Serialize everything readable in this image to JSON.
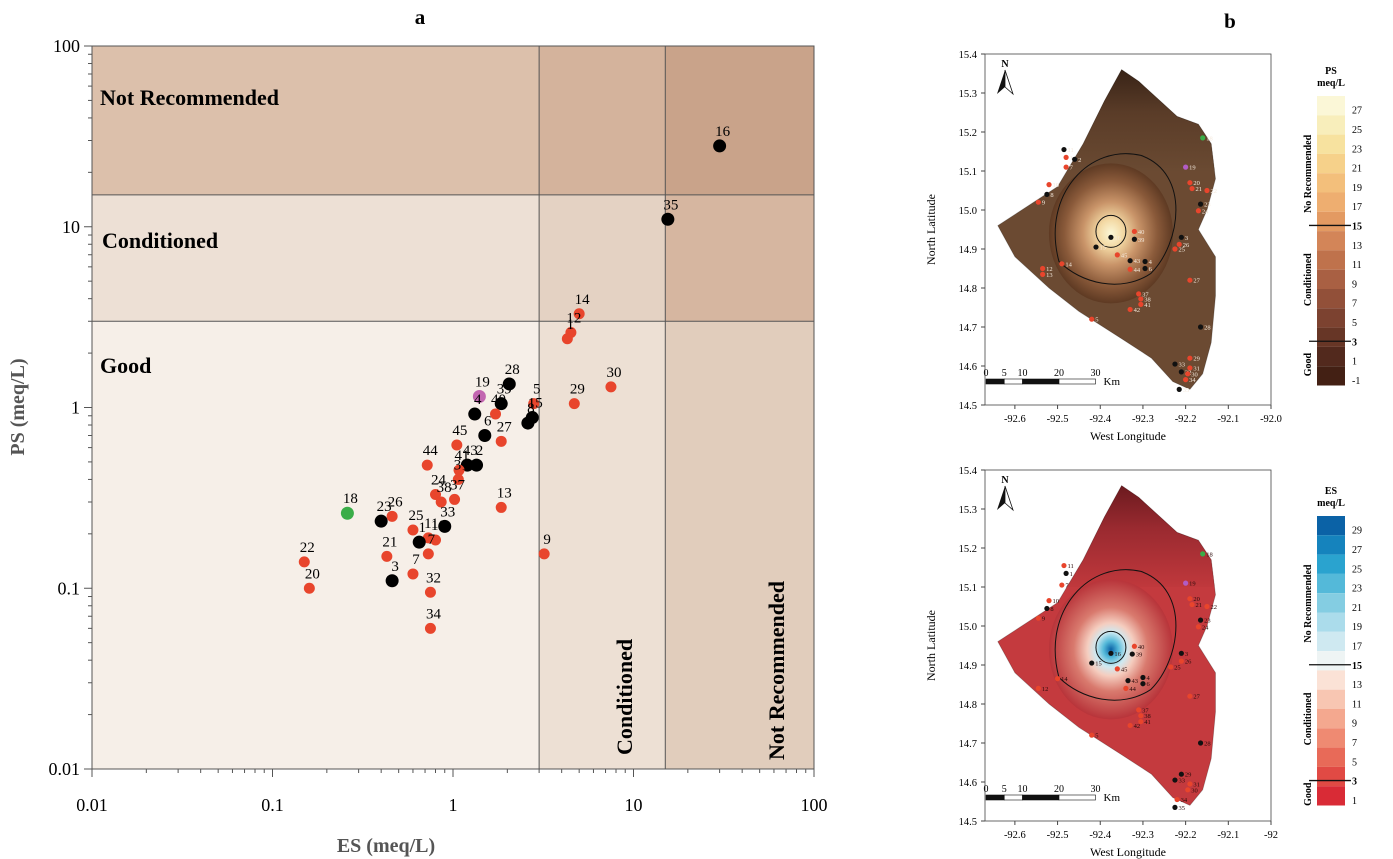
{
  "panel_a": {
    "label": "a",
    "xlabel": "ES (meq/L)",
    "ylabel": "PS (meq/L)",
    "x_ticks": [
      "0.01",
      "0.1",
      "1",
      "10",
      "100"
    ],
    "y_ticks": [
      "0.01",
      "0.1",
      "1",
      "10",
      "100"
    ],
    "zones": {
      "not_recommended": "Not Recommended",
      "conditioned": "Conditioned",
      "good": "Good",
      "x_conditioned": "Conditioned",
      "x_not_recommended": "Not Recommended"
    }
  },
  "panel_b": {
    "label": "b",
    "north": "N",
    "y_axis_label": "North Latitude",
    "x_axis_label": "West Longitude",
    "lat_ticks": [
      "15.4",
      "15.3",
      "15.2",
      "15.1",
      "15.0",
      "14.9",
      "14.8",
      "14.7",
      "14.6",
      "14.5"
    ],
    "lon_ticks_top": [
      "-92.6",
      "-92.5",
      "-92.4",
      "-92.3",
      "-92.2",
      "-92.1",
      "-92.0"
    ],
    "lon_ticks_bottom": [
      "-92.6",
      "-92.5",
      "-92.4",
      "-92.3",
      "-92.2",
      "-92.1",
      "-92"
    ],
    "scale_ticks": [
      "0",
      "5",
      "10",
      "20",
      "30"
    ],
    "scale_unit": "Km",
    "legend_ps": {
      "title": "PS",
      "unit": "meq/L",
      "values": [
        "27",
        "25",
        "23",
        "21",
        "19",
        "17",
        "15",
        "13",
        "11",
        "9",
        "7",
        "5",
        "3",
        "1",
        "-1"
      ],
      "classes": [
        "No Recommended",
        "Conditioned",
        "Good"
      ],
      "colors": [
        "#fbf7d7",
        "#f8eebb",
        "#f7e29f",
        "#f6d18a",
        "#f3bf7b",
        "#eeae70",
        "#e39a62",
        "#d38558",
        "#bf724c",
        "#a96043",
        "#925039",
        "#7c4230",
        "#673626",
        "#52291d",
        "#432014"
      ]
    },
    "legend_es": {
      "title": "ES",
      "unit": "meq/L",
      "values": [
        "29",
        "27",
        "25",
        "23",
        "21",
        "19",
        "17",
        "15",
        "13",
        "11",
        "9",
        "7",
        "5",
        "3",
        "1"
      ],
      "classes": [
        "No Recommended",
        "Conditioned",
        "Good"
      ],
      "colors": [
        "#0b62a6",
        "#1583bd",
        "#2aa3cf",
        "#54b9d9",
        "#84cde2",
        "#abdceb",
        "#cfe9f1",
        "#eef4f4",
        "#fbe2d6",
        "#f8c6b2",
        "#f4a88f",
        "#ef8a72",
        "#e86a58",
        "#e14a44",
        "#d92b36"
      ]
    },
    "points_ps": [
      {
        "label": "11",
        "lon": -92.485,
        "lat": 15.155,
        "kind": "black"
      },
      {
        "label": "1",
        "lon": -92.48,
        "lat": 15.135,
        "kind": "red"
      },
      {
        "label": "2",
        "lon": -92.46,
        "lat": 15.13,
        "kind": "black"
      },
      {
        "label": "7",
        "lon": -92.48,
        "lat": 15.11,
        "kind": "red"
      },
      {
        "label": "10",
        "lon": -92.52,
        "lat": 15.065,
        "kind": "red"
      },
      {
        "label": "8",
        "lon": -92.525,
        "lat": 15.04,
        "kind": "black"
      },
      {
        "label": "9",
        "lon": -92.545,
        "lat": 15.02,
        "kind": "red"
      },
      {
        "label": "14",
        "lon": -92.49,
        "lat": 14.862,
        "kind": "red"
      },
      {
        "label": "12",
        "lon": -92.535,
        "lat": 14.85,
        "kind": "red"
      },
      {
        "label": "13",
        "lon": -92.535,
        "lat": 14.835,
        "kind": "red"
      },
      {
        "label": "16",
        "lon": -92.375,
        "lat": 14.93,
        "kind": "black"
      },
      {
        "label": "15",
        "lon": -92.41,
        "lat": 14.905,
        "kind": "black"
      },
      {
        "label": "45",
        "lon": -92.36,
        "lat": 14.885,
        "kind": "red"
      },
      {
        "label": "43",
        "lon": -92.33,
        "lat": 14.87,
        "kind": "black"
      },
      {
        "label": "4",
        "lon": -92.295,
        "lat": 14.868,
        "kind": "black"
      },
      {
        "label": "6",
        "lon": -92.295,
        "lat": 14.85,
        "kind": "black"
      },
      {
        "label": "44",
        "lon": -92.33,
        "lat": 14.848,
        "kind": "red"
      },
      {
        "label": "40",
        "lon": -92.32,
        "lat": 14.945,
        "kind": "red"
      },
      {
        "label": "39",
        "lon": -92.32,
        "lat": 14.925,
        "kind": "black"
      },
      {
        "label": "3",
        "lon": -92.21,
        "lat": 14.93,
        "kind": "black"
      },
      {
        "label": "26",
        "lon": -92.215,
        "lat": 14.912,
        "kind": "red"
      },
      {
        "label": "25",
        "lon": -92.225,
        "lat": 14.9,
        "kind": "red"
      },
      {
        "label": "19",
        "lon": -92.2,
        "lat": 15.11,
        "kind": "purple"
      },
      {
        "label": "18",
        "lon": -92.16,
        "lat": 15.185,
        "kind": "green"
      },
      {
        "label": "20",
        "lon": -92.19,
        "lat": 15.07,
        "kind": "red"
      },
      {
        "label": "21",
        "lon": -92.185,
        "lat": 15.055,
        "kind": "red"
      },
      {
        "label": "22",
        "lon": -92.15,
        "lat": 15.05,
        "kind": "red"
      },
      {
        "label": "23",
        "lon": -92.165,
        "lat": 15.015,
        "kind": "black"
      },
      {
        "label": "24",
        "lon": -92.17,
        "lat": 14.998,
        "kind": "red"
      },
      {
        "label": "27",
        "lon": -92.19,
        "lat": 14.82,
        "kind": "red"
      },
      {
        "label": "37",
        "lon": -92.31,
        "lat": 14.785,
        "kind": "red"
      },
      {
        "label": "38",
        "lon": -92.305,
        "lat": 14.772,
        "kind": "red"
      },
      {
        "label": "41",
        "lon": -92.305,
        "lat": 14.758,
        "kind": "red"
      },
      {
        "label": "42",
        "lon": -92.33,
        "lat": 14.745,
        "kind": "red"
      },
      {
        "label": "5",
        "lon": -92.42,
        "lat": 14.72,
        "kind": "red"
      },
      {
        "label": "28",
        "lon": -92.165,
        "lat": 14.7,
        "kind": "black"
      },
      {
        "label": "29",
        "lon": -92.19,
        "lat": 14.62,
        "kind": "red"
      },
      {
        "label": "33",
        "lon": -92.225,
        "lat": 14.605,
        "kind": "black"
      },
      {
        "label": "31",
        "lon": -92.19,
        "lat": 14.595,
        "kind": "red"
      },
      {
        "label": "32",
        "lon": -92.21,
        "lat": 14.585,
        "kind": "black"
      },
      {
        "label": "30",
        "lon": -92.195,
        "lat": 14.58,
        "kind": "red"
      },
      {
        "label": "34",
        "lon": -92.2,
        "lat": 14.565,
        "kind": "red"
      },
      {
        "label": "35",
        "lon": -92.215,
        "lat": 14.54,
        "kind": "black"
      }
    ],
    "points_es": [
      {
        "label": "11",
        "lon": -92.485,
        "lat": 15.155,
        "kind": "red"
      },
      {
        "label": "1",
        "lon": -92.48,
        "lat": 15.135,
        "kind": "black"
      },
      {
        "label": "7",
        "lon": -92.49,
        "lat": 15.105,
        "kind": "red"
      },
      {
        "label": "10",
        "lon": -92.52,
        "lat": 15.065,
        "kind": "red"
      },
      {
        "label": "8",
        "lon": -92.525,
        "lat": 15.045,
        "kind": "black"
      },
      {
        "label": "9",
        "lon": -92.545,
        "lat": 15.02,
        "kind": "red"
      },
      {
        "label": "16",
        "lon": -92.375,
        "lat": 14.93,
        "kind": "black"
      },
      {
        "label": "15",
        "lon": -92.42,
        "lat": 14.905,
        "kind": "black"
      },
      {
        "label": "14",
        "lon": -92.5,
        "lat": 14.865,
        "kind": "red"
      },
      {
        "label": "12",
        "lon": -92.545,
        "lat": 14.84,
        "kind": "red"
      },
      {
        "label": "45",
        "lon": -92.36,
        "lat": 14.89,
        "kind": "red"
      },
      {
        "label": "43",
        "lon": -92.335,
        "lat": 14.86,
        "kind": "black"
      },
      {
        "label": "4",
        "lon": -92.3,
        "lat": 14.868,
        "kind": "black"
      },
      {
        "label": "6",
        "lon": -92.3,
        "lat": 14.852,
        "kind": "black"
      },
      {
        "label": "44",
        "lon": -92.34,
        "lat": 14.84,
        "kind": "red"
      },
      {
        "label": "40",
        "lon": -92.32,
        "lat": 14.948,
        "kind": "red"
      },
      {
        "label": "39",
        "lon": -92.325,
        "lat": 14.928,
        "kind": "black"
      },
      {
        "label": "3",
        "lon": -92.21,
        "lat": 14.93,
        "kind": "black"
      },
      {
        "label": "26",
        "lon": -92.21,
        "lat": 14.91,
        "kind": "red"
      },
      {
        "label": "25",
        "lon": -92.235,
        "lat": 14.895,
        "kind": "red"
      },
      {
        "label": "19",
        "lon": -92.2,
        "lat": 15.11,
        "kind": "purple"
      },
      {
        "label": "18",
        "lon": -92.16,
        "lat": 15.185,
        "kind": "green"
      },
      {
        "label": "20",
        "lon": -92.19,
        "lat": 15.07,
        "kind": "red"
      },
      {
        "label": "21",
        "lon": -92.185,
        "lat": 15.055,
        "kind": "red"
      },
      {
        "label": "22",
        "lon": -92.15,
        "lat": 15.05,
        "kind": "red"
      },
      {
        "label": "23",
        "lon": -92.165,
        "lat": 15.015,
        "kind": "black"
      },
      {
        "label": "24",
        "lon": -92.17,
        "lat": 14.998,
        "kind": "red"
      },
      {
        "label": "27",
        "lon": -92.19,
        "lat": 14.82,
        "kind": "red"
      },
      {
        "label": "37",
        "lon": -92.31,
        "lat": 14.785,
        "kind": "red"
      },
      {
        "label": "38",
        "lon": -92.305,
        "lat": 14.77,
        "kind": "red"
      },
      {
        "label": "41",
        "lon": -92.305,
        "lat": 14.755,
        "kind": "red"
      },
      {
        "label": "42",
        "lon": -92.33,
        "lat": 14.745,
        "kind": "red"
      },
      {
        "label": "5",
        "lon": -92.42,
        "lat": 14.72,
        "kind": "red"
      },
      {
        "label": "28",
        "lon": -92.165,
        "lat": 14.7,
        "kind": "black"
      },
      {
        "label": "29",
        "lon": -92.21,
        "lat": 14.62,
        "kind": "black"
      },
      {
        "label": "33",
        "lon": -92.225,
        "lat": 14.605,
        "kind": "black"
      },
      {
        "label": "31",
        "lon": -92.19,
        "lat": 14.595,
        "kind": "red"
      },
      {
        "label": "30",
        "lon": -92.195,
        "lat": 14.58,
        "kind": "red"
      },
      {
        "label": "34",
        "lon": -92.22,
        "lat": 14.555,
        "kind": "red"
      },
      {
        "label": "35",
        "lon": -92.225,
        "lat": 14.535,
        "kind": "black"
      }
    ]
  },
  "chart_data": {
    "type": "scatter",
    "xlabel": "ES (meq/L)",
    "ylabel": "PS (meq/L)",
    "xscale": "log",
    "yscale": "log",
    "xlim": [
      0.01,
      100
    ],
    "ylim": [
      0.01,
      100
    ],
    "thresholds": {
      "x": [
        3,
        15
      ],
      "y": [
        3,
        15
      ]
    },
    "colors": {
      "red": "#e8452c",
      "black": "#000000",
      "green": "#3aad48",
      "purple": "#c265b0"
    },
    "points": [
      {
        "label": "16",
        "x": 30,
        "y": 28,
        "c": "black"
      },
      {
        "label": "35",
        "x": 15.5,
        "y": 11,
        "c": "black"
      },
      {
        "label": "14",
        "x": 5.0,
        "y": 3.3,
        "c": "red"
      },
      {
        "label": "12",
        "x": 4.5,
        "y": 2.6,
        "c": "red"
      },
      {
        "label": "1",
        "x": 4.3,
        "y": 2.4,
        "c": "red"
      },
      {
        "label": "30",
        "x": 7.5,
        "y": 1.3,
        "c": "red"
      },
      {
        "label": "29",
        "x": 4.7,
        "y": 1.05,
        "c": "red"
      },
      {
        "label": "5",
        "x": 2.8,
        "y": 1.05,
        "c": "red"
      },
      {
        "label": "15",
        "x": 2.75,
        "y": 0.88,
        "c": "black"
      },
      {
        "label": "8",
        "x": 2.6,
        "y": 0.82,
        "c": "black"
      },
      {
        "label": "28",
        "x": 2.05,
        "y": 1.35,
        "c": "black"
      },
      {
        "label": "39",
        "x": 1.85,
        "y": 1.05,
        "c": "black"
      },
      {
        "label": "40",
        "x": 1.72,
        "y": 0.92,
        "c": "red"
      },
      {
        "label": "19",
        "x": 1.4,
        "y": 1.15,
        "c": "purple"
      },
      {
        "label": "4",
        "x": 1.32,
        "y": 0.92,
        "c": "black"
      },
      {
        "label": "6",
        "x": 1.5,
        "y": 0.7,
        "c": "black"
      },
      {
        "label": "27",
        "x": 1.85,
        "y": 0.65,
        "c": "red"
      },
      {
        "label": "45",
        "x": 1.05,
        "y": 0.62,
        "c": "red"
      },
      {
        "label": "43",
        "x": 1.2,
        "y": 0.48,
        "c": "black"
      },
      {
        "label": "2",
        "x": 1.35,
        "y": 0.48,
        "c": "black"
      },
      {
        "label": "41",
        "x": 1.08,
        "y": 0.45,
        "c": "red"
      },
      {
        "label": "44",
        "x": 0.72,
        "y": 0.48,
        "c": "red"
      },
      {
        "label": "31",
        "x": 1.07,
        "y": 0.4,
        "c": "red"
      },
      {
        "label": "24",
        "x": 0.8,
        "y": 0.33,
        "c": "red"
      },
      {
        "label": "38",
        "x": 0.86,
        "y": 0.3,
        "c": "red"
      },
      {
        "label": "37",
        "x": 1.02,
        "y": 0.31,
        "c": "red"
      },
      {
        "label": "13",
        "x": 1.85,
        "y": 0.28,
        "c": "red"
      },
      {
        "label": "33",
        "x": 0.9,
        "y": 0.22,
        "c": "black"
      },
      {
        "label": "11",
        "x": 0.73,
        "y": 0.19,
        "c": "red"
      },
      {
        "label": "10",
        "x": 0.8,
        "y": 0.185,
        "c": "red"
      },
      {
        "label": "1",
        "x": 0.65,
        "y": 0.18,
        "c": "black"
      },
      {
        "label": "25",
        "x": 0.6,
        "y": 0.21,
        "c": "red"
      },
      {
        "label": "26",
        "x": 0.46,
        "y": 0.25,
        "c": "red"
      },
      {
        "label": "23",
        "x": 0.4,
        "y": 0.235,
        "c": "black"
      },
      {
        "label": "18",
        "x": 0.26,
        "y": 0.26,
        "c": "green"
      },
      {
        "label": "21",
        "x": 0.43,
        "y": 0.15,
        "c": "red"
      },
      {
        "label": "7",
        "x": 0.73,
        "y": 0.155,
        "c": "red"
      },
      {
        "label": "9",
        "x": 3.2,
        "y": 0.155,
        "c": "red"
      },
      {
        "label": "22",
        "x": 0.15,
        "y": 0.14,
        "c": "red"
      },
      {
        "label": "20",
        "x": 0.16,
        "y": 0.1,
        "c": "red"
      },
      {
        "label": "3",
        "x": 0.46,
        "y": 0.11,
        "c": "black"
      },
      {
        "label": "7",
        "x": 0.6,
        "y": 0.12,
        "c": "red"
      },
      {
        "label": "32",
        "x": 0.75,
        "y": 0.095,
        "c": "red"
      },
      {
        "label": "34",
        "x": 0.75,
        "y": 0.06,
        "c": "red"
      }
    ]
  }
}
